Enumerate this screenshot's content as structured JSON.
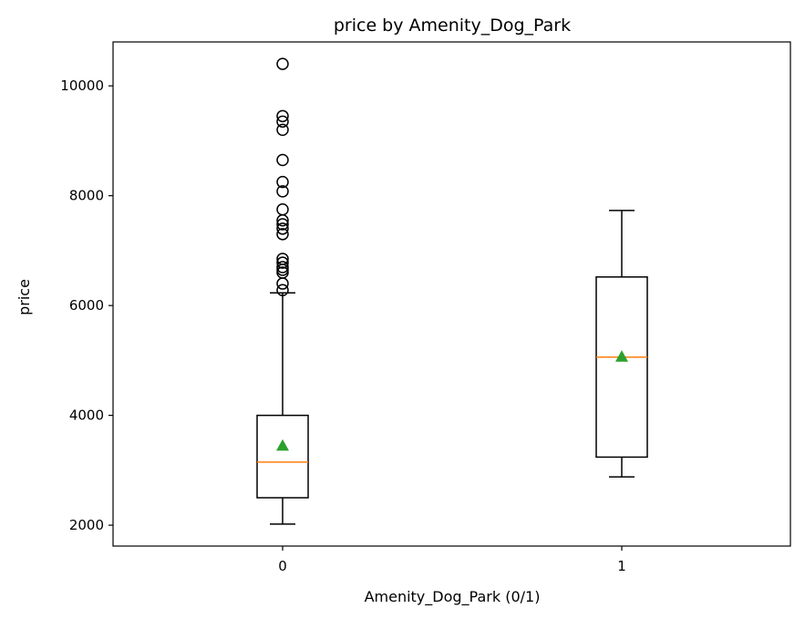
{
  "chart_data": {
    "type": "box",
    "title": "price by Amenity_Dog_Park",
    "xlabel": "Amenity_Dog_Park (0/1)",
    "ylabel": "price",
    "categories": [
      "0",
      "1"
    ],
    "ylim": [
      1620,
      10800
    ],
    "y_ticks": [
      2000,
      4000,
      6000,
      8000,
      10000
    ],
    "y_tick_labels": [
      "2000",
      "4000",
      "6000",
      "8000",
      "10000"
    ],
    "grid": false,
    "boxes": [
      {
        "category": "0",
        "whisker_low": 2020,
        "q1": 2500,
        "median": 3150,
        "q3": 4000,
        "whisker_high": 6230,
        "mean": 3450,
        "outliers": [
          6280,
          6400,
          6600,
          6650,
          6700,
          6780,
          6850,
          7300,
          7400,
          7480,
          7550,
          7750,
          8080,
          8250,
          8650,
          9200,
          9350,
          9450,
          10400
        ]
      },
      {
        "category": "1",
        "whisker_low": 2880,
        "q1": 3240,
        "median": 5060,
        "q3": 6520,
        "whisker_high": 7730,
        "mean": 5070,
        "outliers": []
      }
    ],
    "colors": {
      "box": "#000000",
      "median": "#ff7f0e",
      "mean": "#2ca02c",
      "outlier": "#000000"
    }
  }
}
